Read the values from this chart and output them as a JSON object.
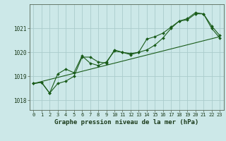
{
  "title": "Graphe pression niveau de la mer (hPa)",
  "background_color": "#cce8e8",
  "grid_color": "#aacccc",
  "line_color": "#1a5c1a",
  "xlim": [
    -0.5,
    23.5
  ],
  "ylim": [
    1017.6,
    1022.0
  ],
  "yticks": [
    1018,
    1019,
    1020,
    1021
  ],
  "xticks": [
    0,
    1,
    2,
    3,
    4,
    5,
    6,
    7,
    8,
    9,
    10,
    11,
    12,
    13,
    14,
    15,
    16,
    17,
    18,
    19,
    20,
    21,
    22,
    23
  ],
  "series1": {
    "x": [
      0,
      1,
      2,
      3,
      4,
      5,
      6,
      7,
      8,
      9,
      10,
      11,
      12,
      13,
      14,
      15,
      16,
      17,
      18,
      19,
      20,
      21,
      22,
      23
    ],
    "y": [
      1018.7,
      1018.75,
      1018.3,
      1018.7,
      1018.8,
      1019.0,
      1019.8,
      1019.8,
      1019.6,
      1019.55,
      1020.1,
      1020.0,
      1019.9,
      1020.0,
      1020.1,
      1020.3,
      1020.6,
      1021.0,
      1021.3,
      1021.35,
      1021.6,
      1021.6,
      1021.0,
      1020.6
    ]
  },
  "series2": {
    "x": [
      0,
      1,
      2,
      3,
      4,
      5,
      6,
      7,
      8,
      9,
      10,
      11,
      12,
      13,
      14,
      15,
      16,
      17,
      18,
      19,
      20,
      21,
      22,
      23
    ],
    "y": [
      1018.7,
      1018.75,
      1018.3,
      1019.1,
      1019.3,
      1019.15,
      1019.85,
      1019.55,
      1019.45,
      1019.6,
      1020.05,
      1020.0,
      1019.95,
      1020.0,
      1020.55,
      1020.65,
      1020.8,
      1021.05,
      1021.3,
      1021.4,
      1021.65,
      1021.6,
      1021.1,
      1020.7
    ]
  },
  "series3": {
    "x": [
      0,
      23
    ],
    "y": [
      1018.7,
      1020.65
    ]
  },
  "ylabel_fontsize": 5.5,
  "xlabel_fontsize": 6.5,
  "tick_labelsize": 5.0
}
